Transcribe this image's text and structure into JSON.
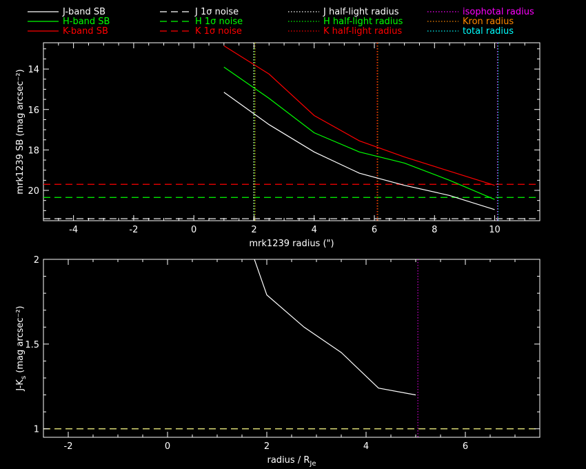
{
  "legend": {
    "items": [
      {
        "label": "J-band SB",
        "color": "#ffffff",
        "dash": "solid"
      },
      {
        "label": "H-band SB",
        "color": "#00ff00",
        "dash": "solid"
      },
      {
        "label": "K-band SB",
        "color": "#ff0000",
        "dash": "solid"
      },
      {
        "label": "J 1σ noise",
        "color": "#ffffff",
        "dash": "dashed"
      },
      {
        "label": "H 1σ noise",
        "color": "#00ff00",
        "dash": "dashed"
      },
      {
        "label": "K 1σ noise",
        "color": "#ff0000",
        "dash": "dashed"
      },
      {
        "label": "J half-light radius",
        "color": "#ffffff",
        "dash": "dotted"
      },
      {
        "label": "H half-light radius",
        "color": "#00ff00",
        "dash": "dotted"
      },
      {
        "label": "K half-light radius",
        "color": "#ff0000",
        "dash": "dotted"
      },
      {
        "label": "isophotal radius",
        "color": "#ff00ff",
        "dash": "dotted"
      },
      {
        "label": "Kron radius",
        "color": "#ff8800",
        "dash": "dotted"
      },
      {
        "label": "total radius",
        "color": "#00ffff",
        "dash": "dotted"
      }
    ]
  },
  "chart_data": [
    {
      "type": "line",
      "xlabel": "mrk1239 radius (\")",
      "ylabel": "mrk1239 SB (mag arcsec⁻²)",
      "xlim": [
        -5,
        11.5
      ],
      "ylim": [
        21.5,
        12.7
      ],
      "y_inverted": true,
      "xticks": [
        -4,
        -2,
        0,
        2,
        4,
        6,
        8,
        10
      ],
      "yticks": [
        14,
        16,
        18,
        20
      ],
      "series": [
        {
          "name": "J-band SB",
          "color": "#ffffff",
          "x": [
            1.0,
            2.5,
            4.0,
            5.5,
            7.0,
            8.5,
            10.0
          ],
          "y": [
            15.15,
            16.75,
            18.1,
            19.15,
            19.75,
            20.25,
            20.95
          ]
        },
        {
          "name": "H-band SB",
          "color": "#00ff00",
          "x": [
            1.0,
            2.5,
            4.0,
            5.5,
            7.0,
            8.5,
            10.0
          ],
          "y": [
            13.9,
            15.45,
            17.15,
            18.1,
            18.65,
            19.5,
            20.45
          ]
        },
        {
          "name": "K-band SB",
          "color": "#ff0000",
          "x": [
            1.0,
            2.5,
            4.0,
            5.5,
            7.0,
            8.5,
            10.0
          ],
          "y": [
            12.85,
            14.25,
            16.3,
            17.55,
            18.35,
            19.05,
            19.75
          ]
        }
      ],
      "hlines": [
        {
          "name": "J 1σ noise",
          "y": 21.4,
          "color": "#ffffff",
          "dash": "dashed"
        },
        {
          "name": "H 1σ noise",
          "y": 20.35,
          "color": "#00ff00",
          "dash": "dashed"
        },
        {
          "name": "K 1σ noise",
          "y": 19.7,
          "color": "#ff0000",
          "dash": "dashed"
        }
      ],
      "vlines": [
        {
          "name": "J half-light radius",
          "x": 2.0,
          "color": "#ffffff",
          "dash": "dotted"
        },
        {
          "name": "H half-light radius",
          "x": 2.0,
          "color": "#00ff00",
          "dash": "dotted"
        },
        {
          "name": "Kron radius",
          "x": 2.0,
          "color": "#ff8800",
          "dash": "dotted"
        },
        {
          "name": "K half-light radius",
          "x": 6.1,
          "color": "#ff0000",
          "dash": "dotted"
        },
        {
          "name": "Kron radius",
          "x": 6.1,
          "color": "#ff8800",
          "dash": "dotted"
        },
        {
          "name": "isophotal radius",
          "x": 10.1,
          "color": "#ff00ff",
          "dash": "dotted"
        },
        {
          "name": "total radius",
          "x": 10.1,
          "color": "#00ffff",
          "dash": "dotted"
        }
      ]
    },
    {
      "type": "line",
      "xlabel": "radius / R",
      "xlabel_sub": "Je",
      "ylabel": "J-K",
      "ylabel_sub": "s",
      "ylabel_unit": " (mag arcsec⁻²)",
      "xlim": [
        -2.5,
        7.5
      ],
      "ylim": [
        0.95,
        2.0
      ],
      "xticks": [
        -2,
        0,
        2,
        4,
        6
      ],
      "yticks": [
        1,
        1.5,
        2
      ],
      "ytick_labels": [
        "1",
        "1.5",
        "2"
      ],
      "series": [
        {
          "name": "J-K",
          "color": "#ffffff",
          "x": [
            1.75,
            2.0,
            2.75,
            3.5,
            4.25,
            5.0
          ],
          "y": [
            2.0,
            1.79,
            1.6,
            1.45,
            1.24,
            1.2
          ]
        }
      ],
      "hlines": [
        {
          "name": "reference",
          "y": 1.0,
          "color": "#ffff88",
          "dash": "dashed"
        }
      ],
      "vlines": [
        {
          "name": "isophotal radius",
          "x": 5.05,
          "color": "#ff00ff",
          "dash": "dotted"
        }
      ]
    }
  ]
}
